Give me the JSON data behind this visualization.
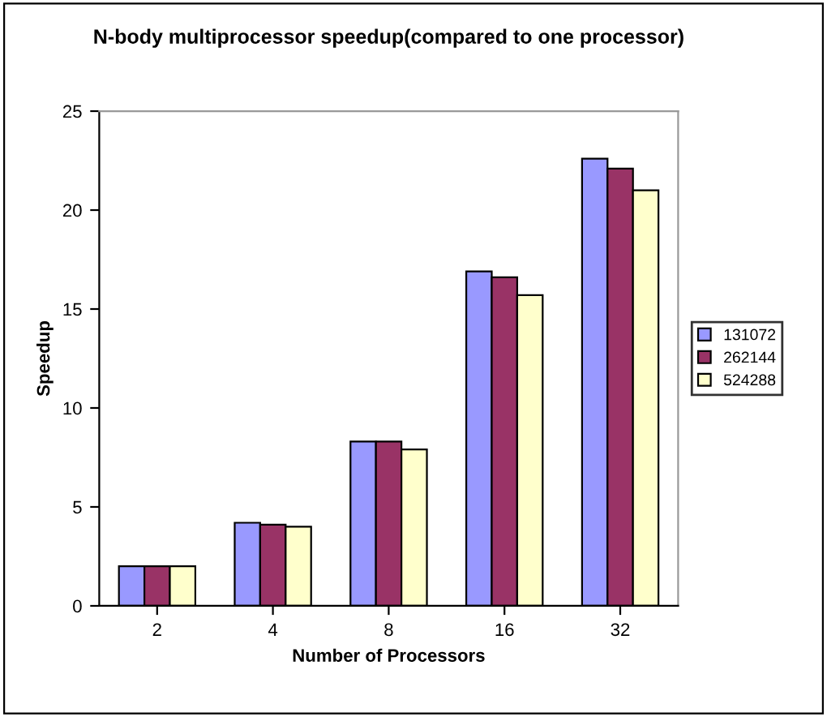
{
  "chart_data": {
    "type": "bar",
    "title": "N-body multiprocessor speedup(compared to one processor)",
    "xlabel": "Number of Processors",
    "ylabel": "Speedup",
    "categories": [
      "2",
      "4",
      "8",
      "16",
      "32"
    ],
    "series": [
      {
        "name": "131072",
        "color": "#9999ff",
        "values": [
          2.0,
          4.2,
          8.3,
          16.9,
          22.6
        ]
      },
      {
        "name": "262144",
        "color": "#993366",
        "values": [
          2.0,
          4.1,
          8.3,
          16.6,
          22.1
        ]
      },
      {
        "name": "524288",
        "color": "#ffffcc",
        "values": [
          2.0,
          4.0,
          7.9,
          15.7,
          21.0
        ]
      }
    ],
    "ylim": [
      0,
      25
    ],
    "yticks": [
      0,
      5,
      10,
      15,
      20,
      25
    ],
    "grid": false,
    "legend": "right"
  }
}
